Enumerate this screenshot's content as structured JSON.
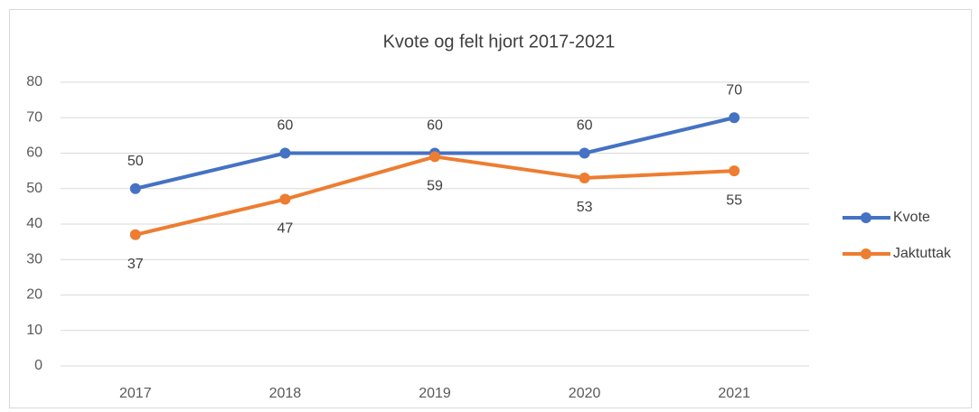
{
  "chart_data": {
    "type": "line",
    "title": "Kvote og felt hjort 2017-2021",
    "categories": [
      "2017",
      "2018",
      "2019",
      "2020",
      "2021"
    ],
    "series": [
      {
        "name": "Kvote",
        "color": "#4472c4",
        "values": [
          50,
          60,
          60,
          60,
          70
        ],
        "label_position": "above"
      },
      {
        "name": "Jaktuttak",
        "color": "#ed7d31",
        "values": [
          37,
          47,
          59,
          53,
          55
        ],
        "label_position": "below"
      }
    ],
    "ylim": [
      0,
      80
    ],
    "yticks": [
      0,
      10,
      20,
      30,
      40,
      50,
      60,
      70,
      80
    ],
    "grid": true,
    "legend": "right",
    "data_labels": true
  }
}
